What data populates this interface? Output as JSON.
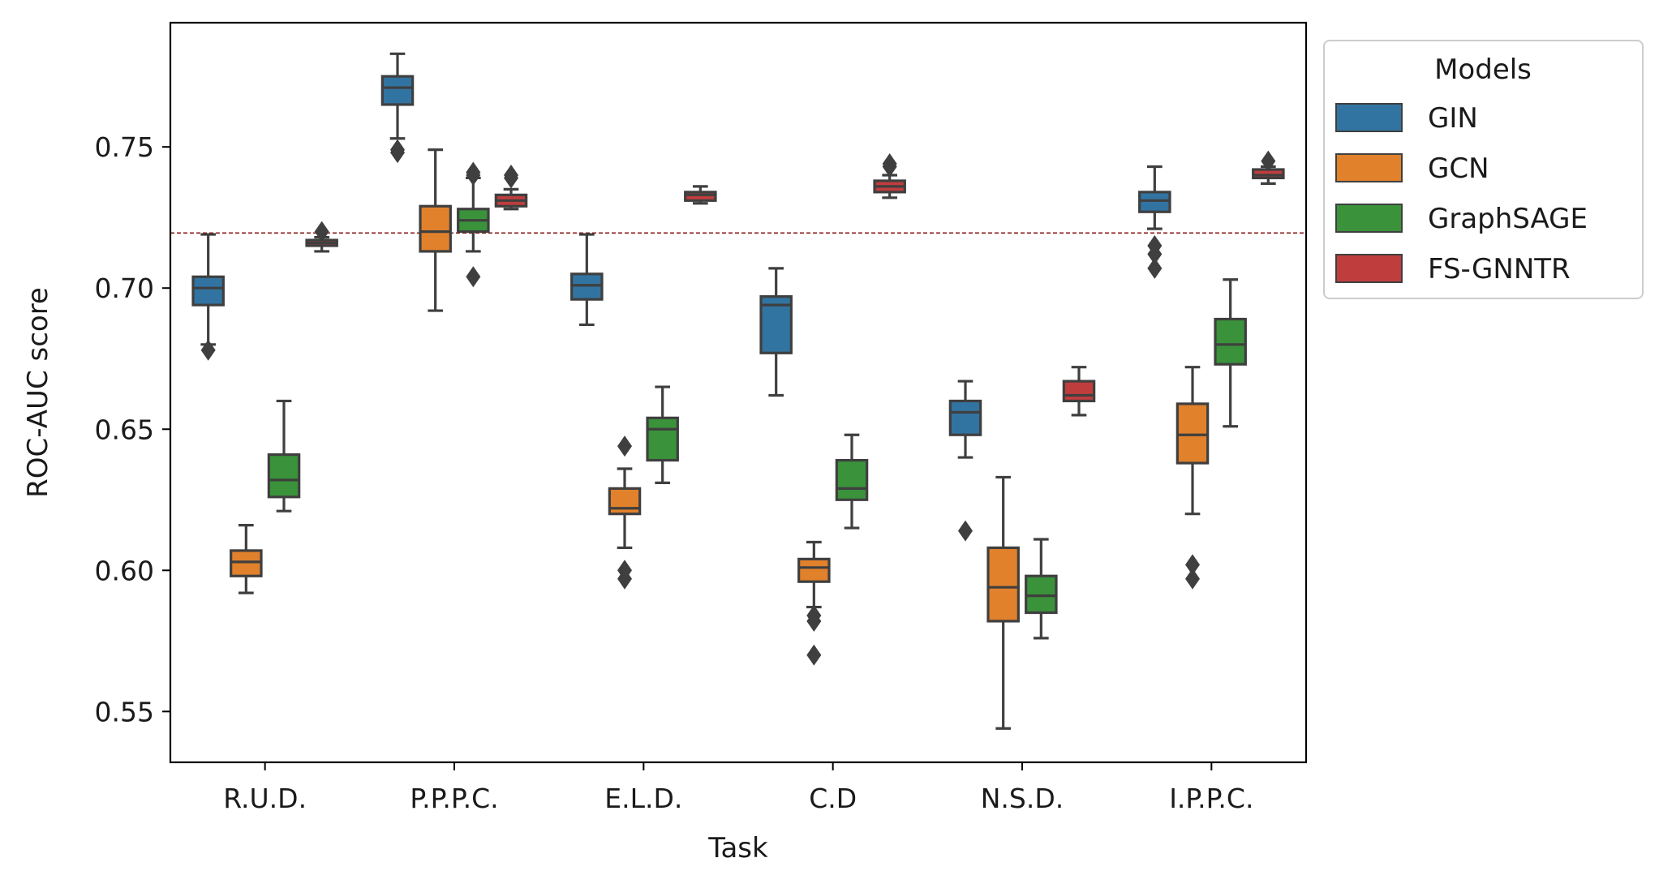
{
  "chart_data": {
    "type": "box",
    "xlabel": "Task",
    "ylabel": "ROC-AUC score",
    "ylim": [
      0.532,
      0.794
    ],
    "yticks": [
      "0.55",
      "0.60",
      "0.65",
      "0.70",
      "0.75"
    ],
    "ytick_values": [
      0.55,
      0.6,
      0.65,
      0.7,
      0.75
    ],
    "categories": [
      "R.U.D.",
      "P.P.P.C.",
      "E.L.D.",
      "C.D",
      "N.S.D.",
      "I.P.P.C."
    ],
    "reference_line": {
      "y": 0.7195,
      "style": "dashed",
      "color": "#8b1a1a"
    },
    "legend": {
      "title": "Models",
      "placement": "upper right, outside plot area"
    },
    "series": [
      {
        "name": "GIN",
        "color": "#3274a1",
        "boxes": [
          {
            "category": "R.U.D.",
            "whisker_low": 0.68,
            "q1": 0.694,
            "median": 0.7,
            "q3": 0.704,
            "whisker_high": 0.719,
            "outliers": [
              0.678
            ]
          },
          {
            "category": "P.P.P.C.",
            "whisker_low": 0.753,
            "q1": 0.765,
            "median": 0.771,
            "q3": 0.775,
            "whisker_high": 0.783,
            "outliers": [
              0.748,
              0.749
            ]
          },
          {
            "category": "E.L.D.",
            "whisker_low": 0.687,
            "q1": 0.696,
            "median": 0.701,
            "q3": 0.705,
            "whisker_high": 0.719,
            "outliers": []
          },
          {
            "category": "C.D",
            "whisker_low": 0.662,
            "q1": 0.677,
            "median": 0.694,
            "q3": 0.697,
            "whisker_high": 0.707,
            "outliers": []
          },
          {
            "category": "N.S.D.",
            "whisker_low": 0.64,
            "q1": 0.648,
            "median": 0.656,
            "q3": 0.66,
            "whisker_high": 0.667,
            "outliers": [
              0.614
            ]
          },
          {
            "category": "I.P.P.C.",
            "whisker_low": 0.721,
            "q1": 0.727,
            "median": 0.731,
            "q3": 0.734,
            "whisker_high": 0.743,
            "outliers": [
              0.707,
              0.712,
              0.715
            ]
          }
        ]
      },
      {
        "name": "GCN",
        "color": "#e1812c",
        "boxes": [
          {
            "category": "R.U.D.",
            "whisker_low": 0.592,
            "q1": 0.598,
            "median": 0.603,
            "q3": 0.607,
            "whisker_high": 0.616,
            "outliers": []
          },
          {
            "category": "P.P.P.C.",
            "whisker_low": 0.692,
            "q1": 0.713,
            "median": 0.72,
            "q3": 0.729,
            "whisker_high": 0.749,
            "outliers": []
          },
          {
            "category": "E.L.D.",
            "whisker_low": 0.608,
            "q1": 0.62,
            "median": 0.622,
            "q3": 0.629,
            "whisker_high": 0.636,
            "outliers": [
              0.597,
              0.6,
              0.644
            ]
          },
          {
            "category": "C.D",
            "whisker_low": 0.587,
            "q1": 0.596,
            "median": 0.601,
            "q3": 0.604,
            "whisker_high": 0.61,
            "outliers": [
              0.57,
              0.582,
              0.584
            ]
          },
          {
            "category": "N.S.D.",
            "whisker_low": 0.544,
            "q1": 0.582,
            "median": 0.594,
            "q3": 0.608,
            "whisker_high": 0.633,
            "outliers": []
          },
          {
            "category": "I.P.P.C.",
            "whisker_low": 0.62,
            "q1": 0.638,
            "median": 0.648,
            "q3": 0.659,
            "whisker_high": 0.672,
            "outliers": [
              0.597,
              0.602
            ]
          }
        ]
      },
      {
        "name": "GraphSAGE",
        "color": "#3a923a",
        "boxes": [
          {
            "category": "R.U.D.",
            "whisker_low": 0.621,
            "q1": 0.626,
            "median": 0.632,
            "q3": 0.641,
            "whisker_high": 0.66,
            "outliers": []
          },
          {
            "category": "P.P.P.C.",
            "whisker_low": 0.713,
            "q1": 0.72,
            "median": 0.724,
            "q3": 0.728,
            "whisker_high": 0.739,
            "outliers": [
              0.704,
              0.74,
              0.741
            ]
          },
          {
            "category": "E.L.D.",
            "whisker_low": 0.631,
            "q1": 0.639,
            "median": 0.65,
            "q3": 0.654,
            "whisker_high": 0.665,
            "outliers": []
          },
          {
            "category": "C.D",
            "whisker_low": 0.615,
            "q1": 0.625,
            "median": 0.629,
            "q3": 0.639,
            "whisker_high": 0.648,
            "outliers": []
          },
          {
            "category": "N.S.D.",
            "whisker_low": 0.576,
            "q1": 0.585,
            "median": 0.591,
            "q3": 0.598,
            "whisker_high": 0.611,
            "outliers": []
          },
          {
            "category": "I.P.P.C.",
            "whisker_low": 0.651,
            "q1": 0.673,
            "median": 0.68,
            "q3": 0.689,
            "whisker_high": 0.703,
            "outliers": []
          }
        ]
      },
      {
        "name": "FS-GNNTR",
        "color": "#c03d3e",
        "boxes": [
          {
            "category": "R.U.D.",
            "whisker_low": 0.713,
            "q1": 0.715,
            "median": 0.716,
            "q3": 0.717,
            "whisker_high": 0.718,
            "outliers": [
              0.72
            ]
          },
          {
            "category": "P.P.P.C.",
            "whisker_low": 0.728,
            "q1": 0.729,
            "median": 0.731,
            "q3": 0.733,
            "whisker_high": 0.735,
            "outliers": [
              0.739,
              0.74
            ]
          },
          {
            "category": "E.L.D.",
            "whisker_low": 0.73,
            "q1": 0.731,
            "median": 0.733,
            "q3": 0.734,
            "whisker_high": 0.736,
            "outliers": []
          },
          {
            "category": "C.D",
            "whisker_low": 0.732,
            "q1": 0.734,
            "median": 0.736,
            "q3": 0.738,
            "whisker_high": 0.74,
            "outliers": [
              0.743,
              0.744
            ]
          },
          {
            "category": "N.S.D.",
            "whisker_low": 0.655,
            "q1": 0.66,
            "median": 0.662,
            "q3": 0.667,
            "whisker_high": 0.672,
            "outliers": []
          },
          {
            "category": "I.P.P.C.",
            "whisker_low": 0.737,
            "q1": 0.739,
            "median": 0.74,
            "q3": 0.742,
            "whisker_high": 0.743,
            "outliers": [
              0.745
            ]
          }
        ]
      }
    ]
  }
}
